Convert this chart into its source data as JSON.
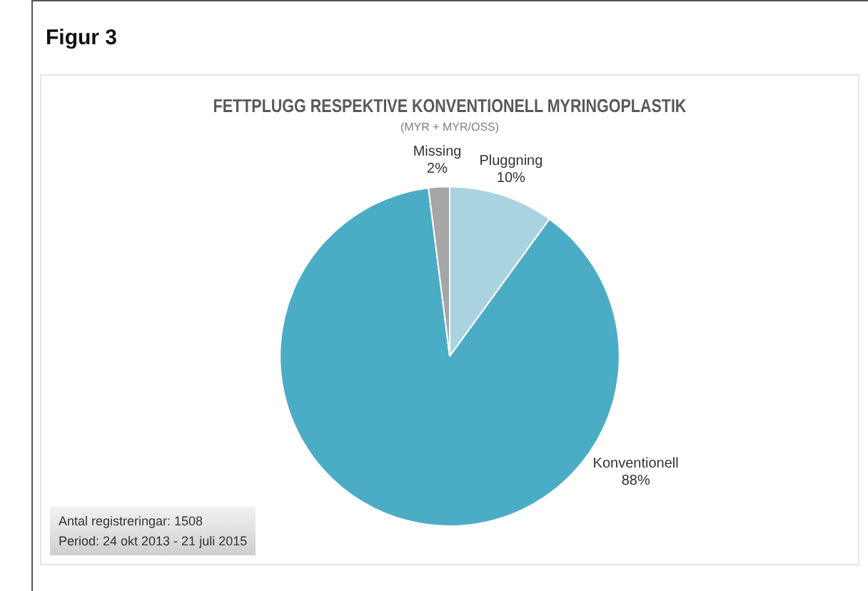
{
  "chart_data": {
    "type": "pie",
    "title": "FETTPLUGG RESPEKTIVE KONVENTIONELL MYRINGOPLASTIK",
    "subtitle": "(MYR + MYR/OSS)",
    "categories": [
      "Pluggning",
      "Konventionell",
      "Missing"
    ],
    "values": [
      10,
      88,
      2
    ],
    "colors": [
      "#a9d3e0",
      "#4bacc6",
      "#a6a6a6"
    ],
    "value_labels": [
      "10%",
      "88%",
      "2%"
    ],
    "legend": false,
    "annotations": [
      "Figur 3",
      "Antal registreringar: 1508",
      "Period: 24 okt 2013 - 21 juli 2015"
    ]
  }
}
